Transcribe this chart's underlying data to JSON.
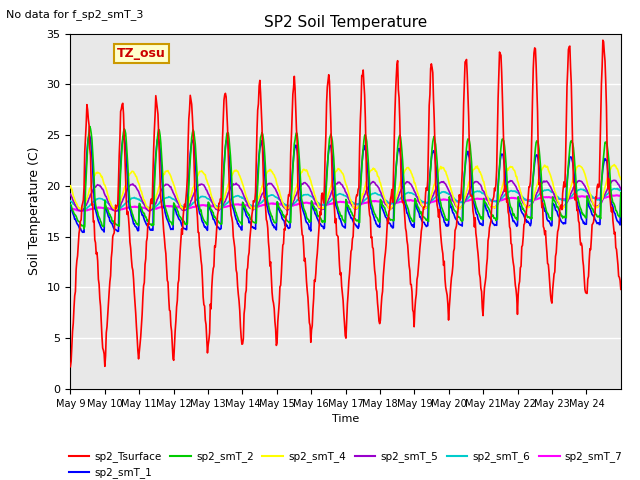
{
  "title": "SP2 Soil Temperature",
  "ylabel": "Soil Temperature (C)",
  "xlabel": "Time",
  "annotation": "No data for f_sp2_smT_3",
  "tz_label": "TZ_osu",
  "ylim": [
    0,
    35
  ],
  "axes_facecolor": "#e8e8e8",
  "legend_entries": [
    {
      "label": "sp2_Tsurface",
      "color": "#ff0000"
    },
    {
      "label": "sp2_smT_1",
      "color": "#0000ff"
    },
    {
      "label": "sp2_smT_2",
      "color": "#00cc00"
    },
    {
      "label": "sp2_smT_4",
      "color": "#ffff00"
    },
    {
      "label": "sp2_smT_5",
      "color": "#9900cc"
    },
    {
      "label": "sp2_smT_6",
      "color": "#00cccc"
    },
    {
      "label": "sp2_smT_7",
      "color": "#ff00ff"
    }
  ],
  "x_tick_labels": [
    "May 9",
    "May 10",
    "May 11",
    "May 12",
    "May 13",
    "May 14",
    "May 15",
    "May 16",
    "May 17",
    "May 18",
    "May 19",
    "May 20",
    "May 21",
    "May 22",
    "May 23",
    "May 24"
  ],
  "num_days": 16,
  "pts_per_day": 48
}
